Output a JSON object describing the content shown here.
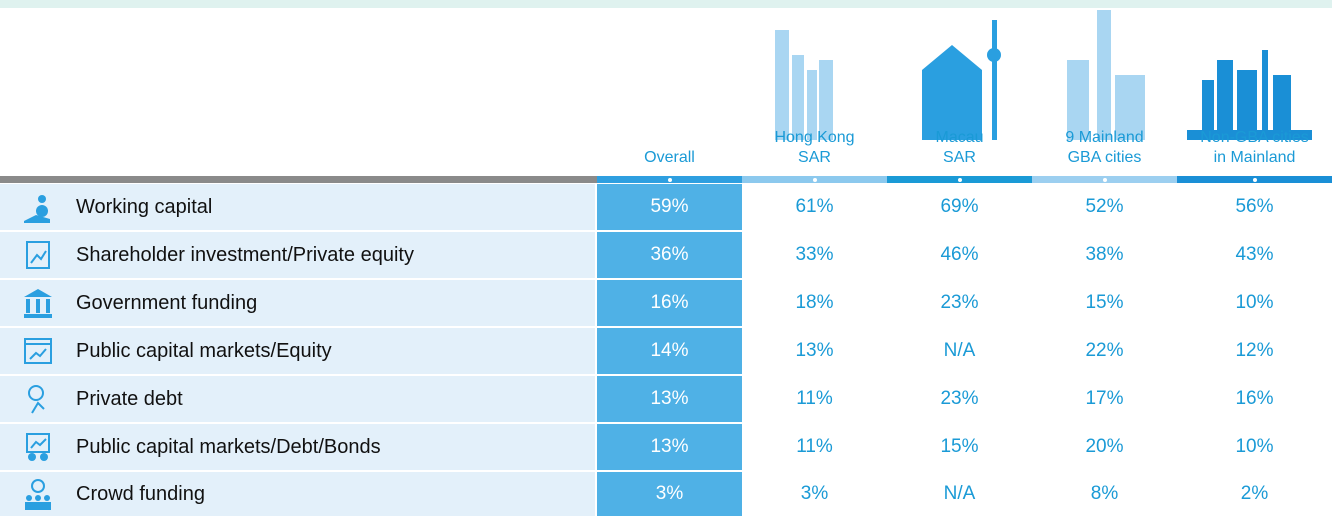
{
  "columns": [
    "Overall",
    "Hong Kong\nSAR",
    "Macau\nSAR",
    "9 Mainland\nGBA cities",
    "Non-GBA cities\nin Mainland"
  ],
  "rows": [
    {
      "label": "Working capital",
      "values": [
        "59%",
        "61%",
        "69%",
        "52%",
        "56%"
      ]
    },
    {
      "label": "Shareholder investment/Private equity",
      "values": [
        "36%",
        "33%",
        "46%",
        "38%",
        "43%"
      ]
    },
    {
      "label": "Government funding",
      "values": [
        "16%",
        "18%",
        "23%",
        "15%",
        "10%"
      ]
    },
    {
      "label": "Public capital markets/Equity",
      "values": [
        "14%",
        "13%",
        "N/A",
        "22%",
        "12%"
      ]
    },
    {
      "label": "Private debt",
      "values": [
        "13%",
        "11%",
        "23%",
        "17%",
        "16%"
      ]
    },
    {
      "label": "Public capital markets/Debt/Bonds",
      "values": [
        "13%",
        "11%",
        "15%",
        "20%",
        "10%"
      ]
    },
    {
      "label": "Crowd funding",
      "values": [
        "3%",
        "3%",
        "N/A",
        "8%",
        "2%"
      ]
    }
  ]
}
